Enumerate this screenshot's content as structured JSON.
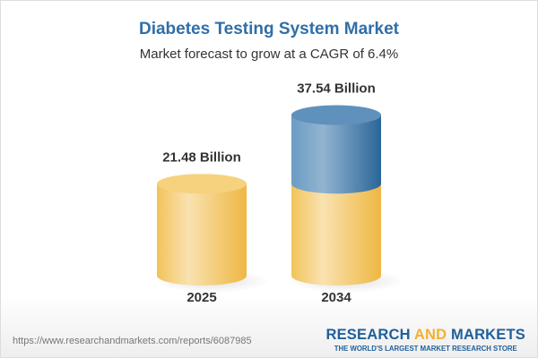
{
  "chart_data": {
    "type": "bar",
    "style": "3d-cylinder",
    "title": "Diabetes Testing System Market",
    "subtitle": "Market forecast to grow at a CAGR of 6.4%",
    "categories": [
      "2025",
      "2034"
    ],
    "values": [
      21.48,
      37.54
    ],
    "data_labels": [
      "21.48 Billion",
      "37.54 Billion"
    ],
    "unit": "Billion",
    "colors": {
      "base": "#f2c55c",
      "growth": "#4f86b5"
    }
  },
  "footer": {
    "url": "https://www.researchandmarkets.com/reports/6087985",
    "logo_part1": "RESEARCH ",
    "logo_part2": "AND",
    "logo_part3": " MARKETS",
    "logo_tagline": "THE WORLD'S LARGEST MARKET RESEARCH STORE"
  }
}
